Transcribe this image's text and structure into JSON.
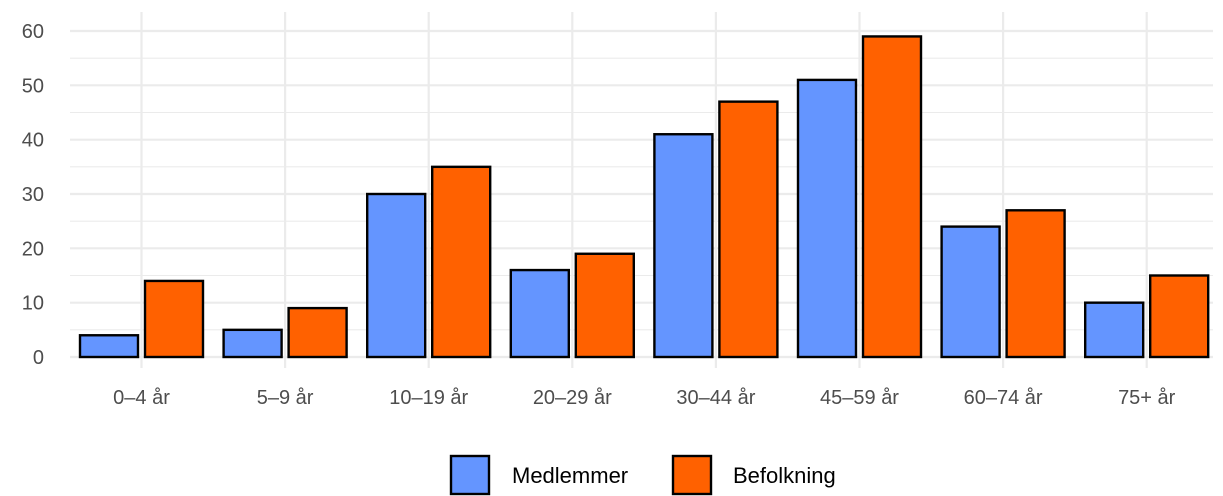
{
  "chart_data": {
    "type": "bar",
    "title": "",
    "xlabel": "",
    "ylabel": "",
    "categories": [
      "0–4 år",
      "5–9 år",
      "10–19 år",
      "20–29 år",
      "30–44 år",
      "45–59 år",
      "60–74 år",
      "75+ år"
    ],
    "series": [
      {
        "name": "Medlemmer",
        "color": "#6495ff",
        "values": [
          4,
          5,
          30,
          16,
          41,
          51,
          24,
          10
        ]
      },
      {
        "name": "Befolkning",
        "color": "#ff6100",
        "values": [
          14,
          9,
          35,
          19,
          47,
          59,
          27,
          15
        ]
      }
    ],
    "ylim": [
      0,
      60
    ],
    "yticks": [
      0,
      10,
      20,
      30,
      40,
      50,
      60
    ],
    "grid": true,
    "legend": "bottom"
  }
}
